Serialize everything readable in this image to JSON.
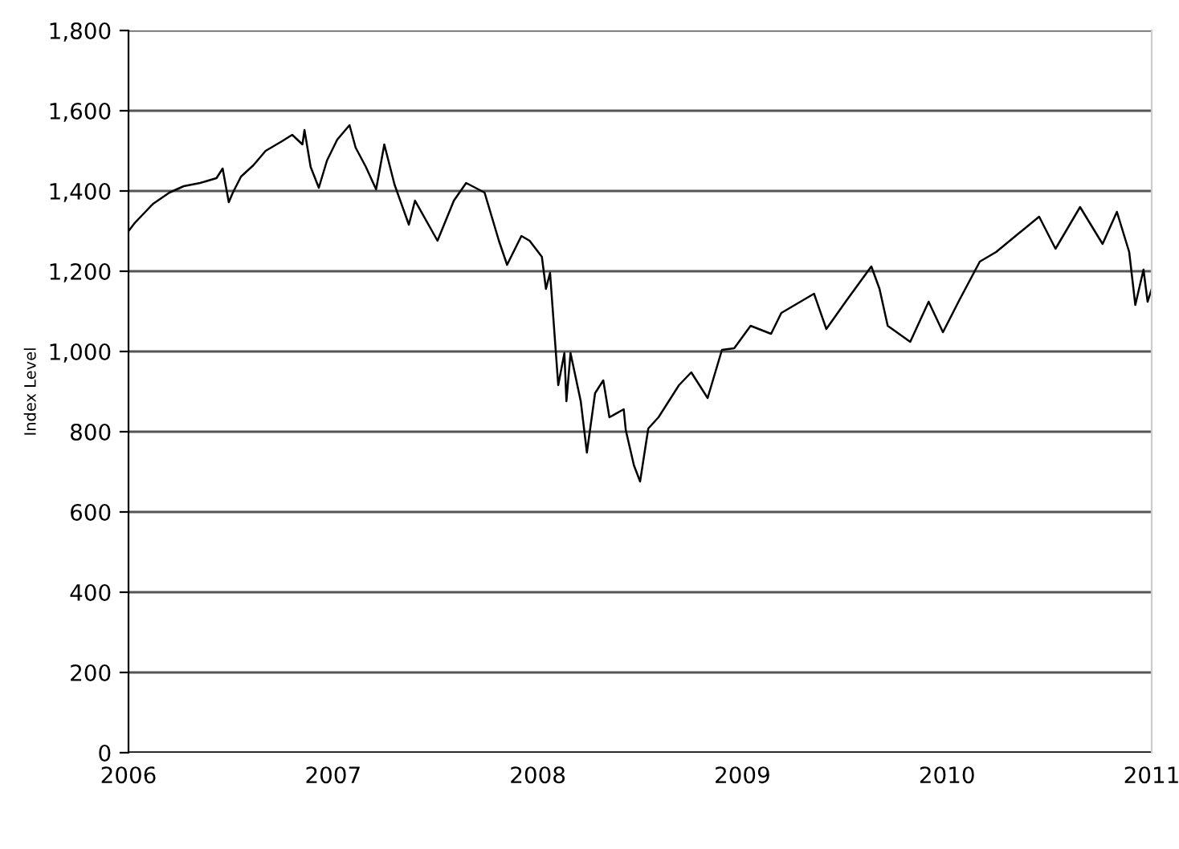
{
  "chart_data": {
    "type": "line",
    "ylabel": "Index Level",
    "x": [
      2006.0,
      2006.03,
      2006.12,
      2006.2,
      2006.27,
      2006.35,
      2006.43,
      2006.46,
      2006.49,
      2006.51,
      2006.55,
      2006.61,
      2006.67,
      2006.75,
      2006.8,
      2006.85,
      2006.86,
      2006.89,
      2006.93,
      2006.97,
      2007.02,
      2007.08,
      2007.11,
      2007.16,
      2007.21,
      2007.25,
      2007.27,
      2007.3,
      2007.37,
      2007.4,
      2007.51,
      2007.59,
      2007.65,
      2007.74,
      2007.81,
      2007.85,
      2007.92,
      2007.96,
      2008.02,
      2008.04,
      2008.06,
      2008.1,
      2008.13,
      2008.14,
      2008.16,
      2008.21,
      2008.24,
      2008.28,
      2008.32,
      2008.35,
      2008.42,
      2008.43,
      2008.47,
      2008.5,
      2008.54,
      2008.59,
      2008.69,
      2008.75,
      2008.83,
      2008.9,
      2008.96,
      2009.04,
      2009.14,
      2009.19,
      2009.35,
      2009.41,
      2009.51,
      2009.63,
      2009.67,
      2009.71,
      2009.82,
      2009.91,
      2009.98,
      2010.06,
      2010.16,
      2010.24,
      2010.45,
      2010.53,
      2010.65,
      2010.76,
      2010.83,
      2010.89,
      2010.92,
      2010.96,
      2010.98,
      2011.0
    ],
    "series": [
      {
        "color": "#000000",
        "values": [
          1300,
          1320,
          1368,
          1396,
          1412,
          1420,
          1432,
          1456,
          1372,
          1396,
          1436,
          1464,
          1500,
          1524,
          1540,
          1516,
          1552,
          1460,
          1408,
          1476,
          1528,
          1564,
          1508,
          1460,
          1404,
          1516,
          1476,
          1416,
          1316,
          1376,
          1276,
          1376,
          1420,
          1396,
          1276,
          1216,
          1288,
          1276,
          1236,
          1156,
          1196,
          916,
          996,
          876,
          996,
          876,
          748,
          896,
          928,
          836,
          856,
          804,
          716,
          676,
          808,
          836,
          916,
          948,
          884,
          1004,
          1008,
          1064,
          1044,
          1096,
          1144,
          1056,
          1128,
          1212,
          1156,
          1064,
          1024,
          1124,
          1048,
          1128,
          1224,
          1248,
          1336,
          1256,
          1360,
          1268,
          1348,
          1248,
          1116,
          1204,
          1124,
          1156
        ]
      }
    ],
    "xlim": [
      2006,
      2011
    ],
    "xticks": [
      2006,
      2007,
      2008,
      2009,
      2010,
      2011
    ],
    "ylim": [
      0,
      1800
    ],
    "yticks": [
      {
        "value": 0,
        "label": "0"
      },
      {
        "value": 200,
        "label": "200"
      },
      {
        "value": 400,
        "label": "400"
      },
      {
        "value": 600,
        "label": "600"
      },
      {
        "value": 800,
        "label": "800"
      },
      {
        "value": 1000,
        "label": "1,000"
      },
      {
        "value": 1200,
        "label": "1,200"
      },
      {
        "value": 1400,
        "label": "1,400"
      },
      {
        "value": 1600,
        "label": "1,600"
      },
      {
        "value": 1800,
        "label": "1,800"
      }
    ],
    "grid": "y",
    "legend": false
  }
}
